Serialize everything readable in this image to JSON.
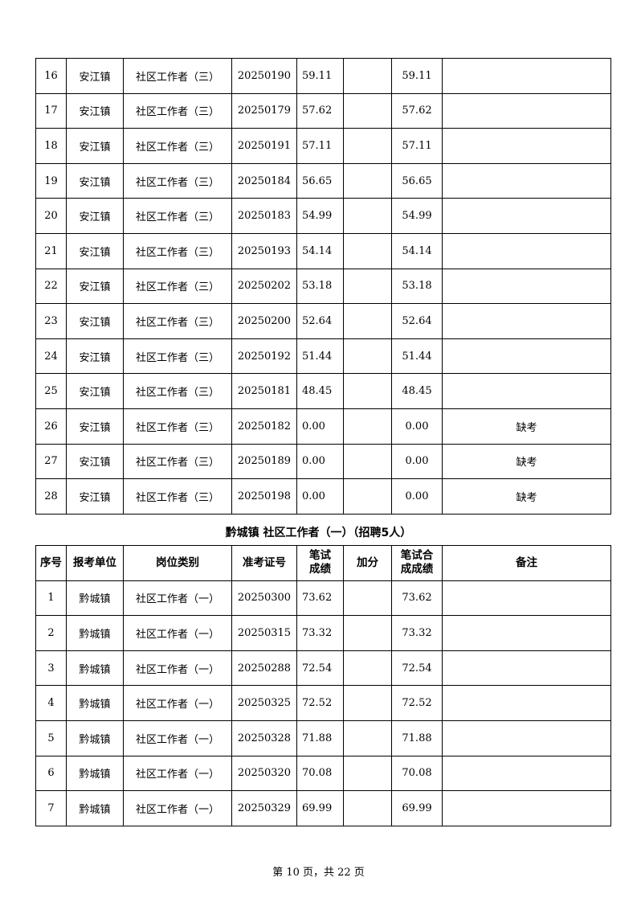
{
  "table1": {
    "rows": [
      [
        "16",
        "安江镇",
        "社区工作者（三）",
        "20250190",
        "59.11",
        "",
        "59.11",
        ""
      ],
      [
        "17",
        "安江镇",
        "社区工作者（三）",
        "20250179",
        "57.62",
        "",
        "57.62",
        ""
      ],
      [
        "18",
        "安江镇",
        "社区工作者（三）",
        "20250191",
        "57.11",
        "",
        "57.11",
        ""
      ],
      [
        "19",
        "安江镇",
        "社区工作者（三）",
        "20250184",
        "56.65",
        "",
        "56.65",
        ""
      ],
      [
        "20",
        "安江镇",
        "社区工作者（三）",
        "20250183",
        "54.99",
        "",
        "54.99",
        ""
      ],
      [
        "21",
        "安江镇",
        "社区工作者（三）",
        "20250193",
        "54.14",
        "",
        "54.14",
        ""
      ],
      [
        "22",
        "安江镇",
        "社区工作者（三）",
        "20250202",
        "53.18",
        "",
        "53.18",
        ""
      ],
      [
        "23",
        "安江镇",
        "社区工作者（三）",
        "20250200",
        "52.64",
        "",
        "52.64",
        ""
      ],
      [
        "24",
        "安江镇",
        "社区工作者（三）",
        "20250192",
        "51.44",
        "",
        "51.44",
        ""
      ],
      [
        "25",
        "安江镇",
        "社区工作者（三）",
        "20250181",
        "48.45",
        "",
        "48.45",
        ""
      ],
      [
        "26",
        "安江镇",
        "社区工作者（三）",
        "20250182",
        "0.00",
        "",
        "0.00",
        "缺考"
      ],
      [
        "27",
        "安江镇",
        "社区工作者（三）",
        "20250189",
        "0.00",
        "",
        "0.00",
        "缺考"
      ],
      [
        "28",
        "安江镇",
        "社区工作者（三）",
        "20250198",
        "0.00",
        "",
        "0.00",
        "缺考"
      ]
    ]
  },
  "section2": {
    "title": "黔城镇 社区工作者（一）（招聘5人）",
    "headers": [
      "序号",
      "报考单位",
      "岗位类别",
      "准考证号",
      "笔试\n成绩",
      "加分",
      "笔试合\n成成绩",
      "备注"
    ],
    "rows": [
      [
        "1",
        "黔城镇",
        "社区工作者（一）",
        "20250300",
        "73.62",
        "",
        "73.62",
        ""
      ],
      [
        "2",
        "黔城镇",
        "社区工作者（一）",
        "20250315",
        "73.32",
        "",
        "73.32",
        ""
      ],
      [
        "3",
        "黔城镇",
        "社区工作者（一）",
        "20250288",
        "72.54",
        "",
        "72.54",
        ""
      ],
      [
        "4",
        "黔城镇",
        "社区工作者（一）",
        "20250325",
        "72.52",
        "",
        "72.52",
        ""
      ],
      [
        "5",
        "黔城镇",
        "社区工作者（一）",
        "20250328",
        "71.88",
        "",
        "71.88",
        ""
      ],
      [
        "6",
        "黔城镇",
        "社区工作者（一）",
        "20250320",
        "70.08",
        "",
        "70.08",
        ""
      ],
      [
        "7",
        "黔城镇",
        "社区工作者（一）",
        "20250329",
        "69.99",
        "",
        "69.99",
        ""
      ]
    ]
  },
  "footer": "第 10 页，共 22 页"
}
